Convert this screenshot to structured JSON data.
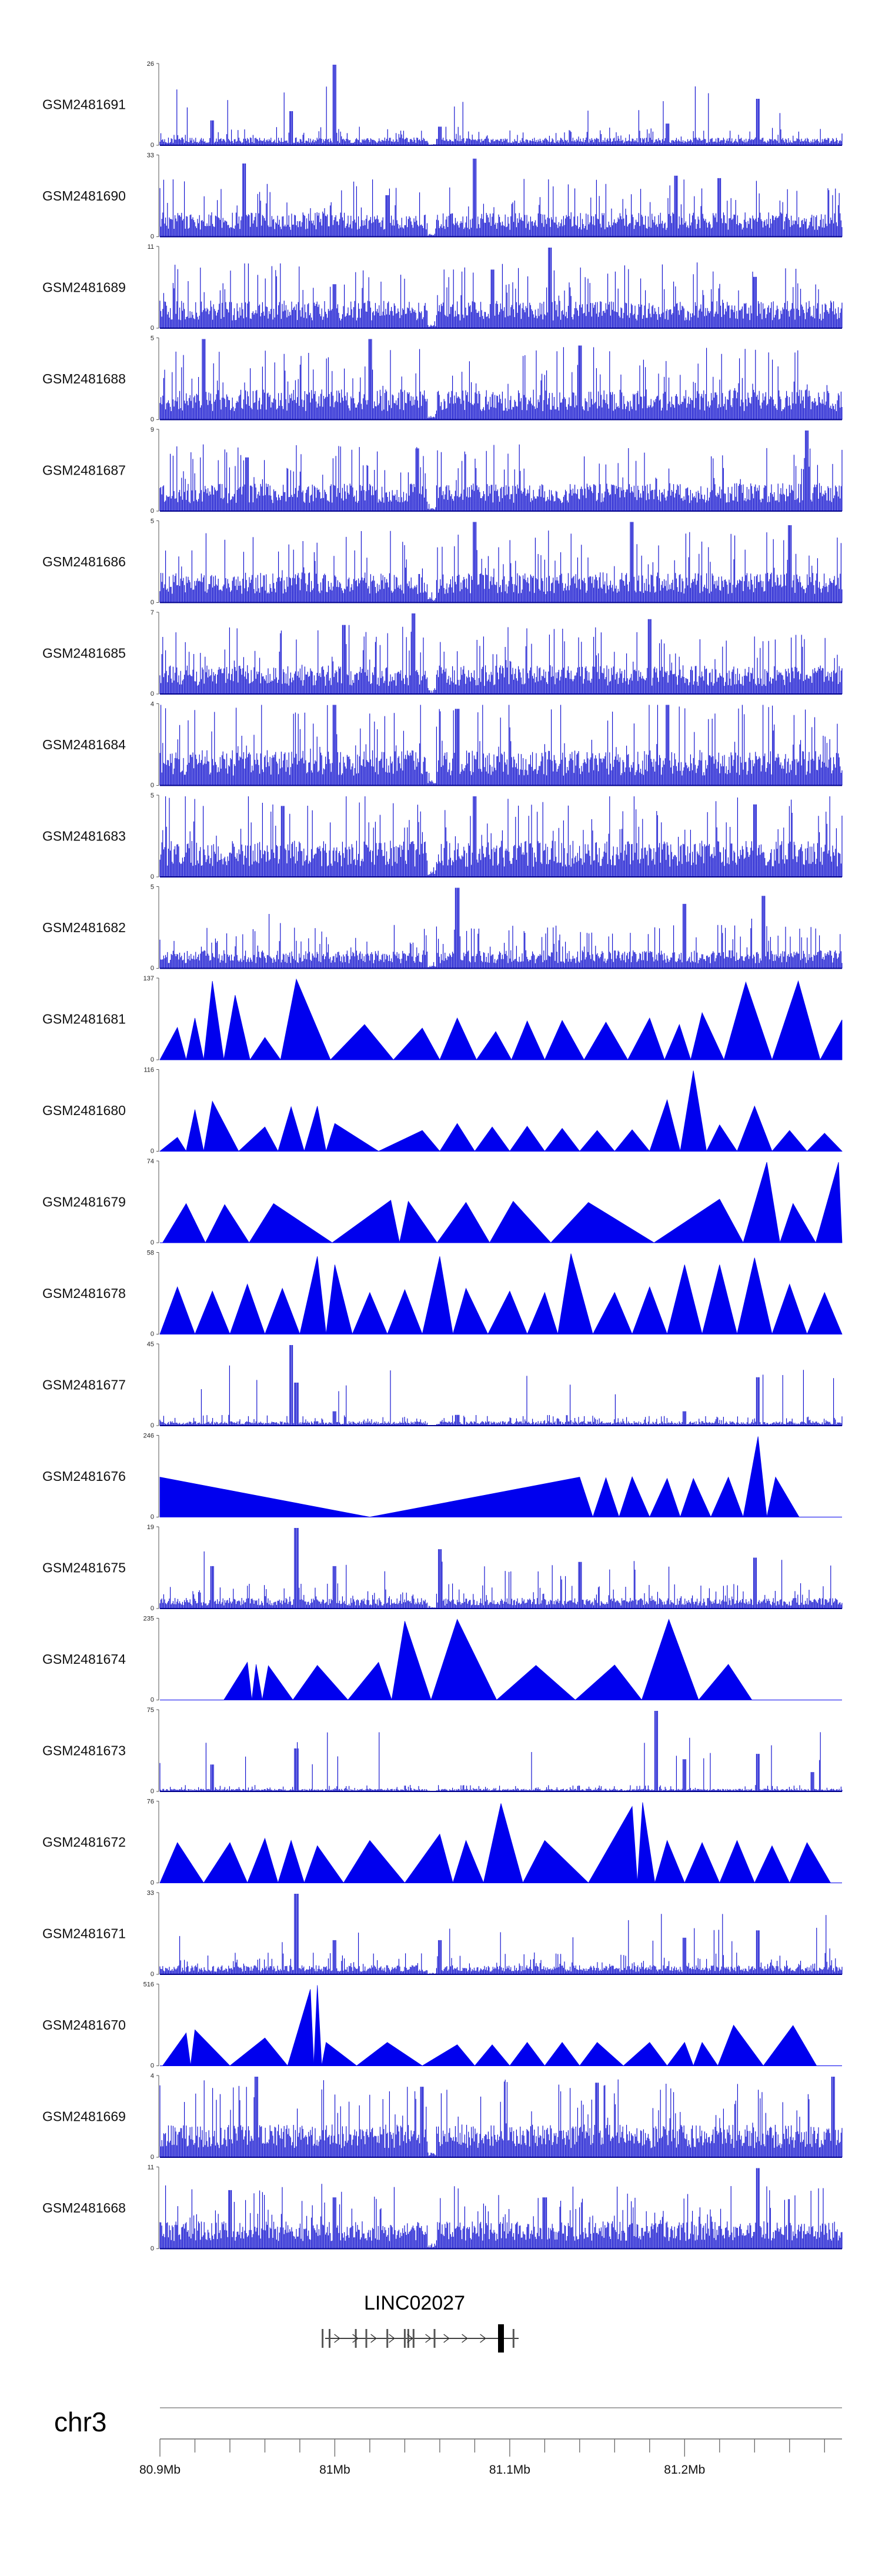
{
  "chart_data": {
    "type": "area",
    "chromosome": "chr3",
    "x_tick_labels": [
      "80.9Mb",
      "81Mb",
      "81.1Mb",
      "81.2Mb"
    ],
    "x_tick_values": [
      80.9,
      81.0,
      81.1,
      81.2
    ],
    "xlim": [
      80.9,
      81.29
    ],
    "gene": {
      "name": "LINC02027",
      "start": 80.993,
      "end": 81.102,
      "exons": [
        80.993,
        80.997,
        81.012,
        81.018,
        81.03,
        81.04,
        81.042,
        81.045,
        81.057,
        81.095
      ]
    },
    "series": [
      {
        "name": "GSM2481691",
        "ylim": [
          0,
          26
        ],
        "style": "signal",
        "peaks": [
          [
            81.0,
            26
          ],
          [
            80.975,
            11
          ],
          [
            81.06,
            6
          ],
          [
            81.19,
            7
          ],
          [
            81.242,
            15
          ],
          [
            80.93,
            8
          ]
        ],
        "base": 2
      },
      {
        "name": "GSM2481690",
        "ylim": [
          0,
          33
        ],
        "style": "signal",
        "peaks": [
          [
            80.948,
            30
          ],
          [
            81.08,
            32
          ],
          [
            81.03,
            17
          ],
          [
            81.195,
            25
          ],
          [
            81.22,
            24
          ]
        ],
        "base": 8
      },
      {
        "name": "GSM2481689",
        "ylim": [
          0,
          11
        ],
        "style": "signal",
        "peaks": [
          [
            81.123,
            11
          ],
          [
            81.09,
            8
          ],
          [
            81.0,
            6
          ],
          [
            81.24,
            7
          ]
        ],
        "base": 3
      },
      {
        "name": "GSM2481688",
        "ylim": [
          0,
          5
        ],
        "style": "signal",
        "peaks": [
          [
            80.925,
            5
          ],
          [
            81.02,
            5
          ],
          [
            81.14,
            4.6
          ]
        ],
        "base": 1.5
      },
      {
        "name": "GSM2481687",
        "ylim": [
          0,
          9
        ],
        "style": "signal",
        "peaks": [
          [
            81.27,
            9
          ],
          [
            81.047,
            7
          ],
          [
            80.95,
            6
          ]
        ],
        "base": 2.5
      },
      {
        "name": "GSM2481686",
        "ylim": [
          0,
          5
        ],
        "style": "signal",
        "peaks": [
          [
            81.08,
            5
          ],
          [
            81.17,
            5
          ],
          [
            81.26,
            4.8
          ]
        ],
        "base": 1.5
      },
      {
        "name": "GSM2481685",
        "ylim": [
          0,
          7
        ],
        "style": "signal",
        "peaks": [
          [
            81.045,
            7
          ],
          [
            81.005,
            6
          ],
          [
            81.18,
            6.5
          ]
        ],
        "base": 2
      },
      {
        "name": "GSM2481684",
        "ylim": [
          0,
          4
        ],
        "style": "signal",
        "peaks": [
          [
            81.0,
            4
          ],
          [
            81.07,
            3.8
          ],
          [
            81.19,
            4
          ]
        ],
        "base": 1.4
      },
      {
        "name": "GSM2481683",
        "ylim": [
          0,
          5
        ],
        "style": "signal",
        "peaks": [
          [
            81.08,
            5
          ],
          [
            81.24,
            4.5
          ],
          [
            80.97,
            4.4
          ]
        ],
        "base": 1.8
      },
      {
        "name": "GSM2481682",
        "ylim": [
          0,
          5
        ],
        "style": "signal",
        "peaks": [
          [
            81.07,
            5
          ],
          [
            81.245,
            4.5
          ],
          [
            81.2,
            4
          ]
        ],
        "base": 0.9
      },
      {
        "name": "GSM2481681",
        "ylim": [
          0,
          137
        ],
        "style": "spikes",
        "spikes": [
          [
            80.91,
            55
          ],
          [
            80.92,
            71
          ],
          [
            80.93,
            134
          ],
          [
            80.943,
            110
          ],
          [
            80.96,
            38
          ],
          [
            80.978,
            137
          ],
          [
            81.017,
            60
          ],
          [
            81.05,
            54
          ],
          [
            81.07,
            71
          ],
          [
            81.092,
            48
          ],
          [
            81.11,
            66
          ],
          [
            81.13,
            67
          ],
          [
            81.155,
            64
          ],
          [
            81.18,
            71
          ],
          [
            81.197,
            60
          ],
          [
            81.21,
            80
          ],
          [
            81.235,
            132
          ],
          [
            81.265,
            134
          ],
          [
            81.29,
            68
          ]
        ]
      },
      {
        "name": "GSM2481680",
        "ylim": [
          0,
          116
        ],
        "style": "spikes",
        "spikes": [
          [
            80.91,
            20
          ],
          [
            80.92,
            60
          ],
          [
            80.93,
            72
          ],
          [
            80.96,
            35
          ],
          [
            80.975,
            64
          ],
          [
            80.99,
            65
          ],
          [
            81.0,
            40
          ],
          [
            81.05,
            30
          ],
          [
            81.07,
            40
          ],
          [
            81.09,
            35
          ],
          [
            81.11,
            36
          ],
          [
            81.13,
            33
          ],
          [
            81.15,
            30
          ],
          [
            81.17,
            31
          ],
          [
            81.19,
            74
          ],
          [
            81.205,
            116
          ],
          [
            81.22,
            38
          ],
          [
            81.24,
            65
          ],
          [
            81.26,
            30
          ],
          [
            81.28,
            26
          ]
        ]
      },
      {
        "name": "GSM2481679",
        "ylim": [
          0,
          74
        ],
        "style": "spikes",
        "spikes": [
          [
            80.915,
            36
          ],
          [
            80.937,
            35
          ],
          [
            80.965,
            36
          ],
          [
            81.032,
            39
          ],
          [
            81.042,
            38
          ],
          [
            81.075,
            37
          ],
          [
            81.102,
            38
          ],
          [
            81.145,
            37
          ],
          [
            81.22,
            40
          ],
          [
            81.247,
            74
          ],
          [
            81.262,
            36
          ],
          [
            81.288,
            74
          ]
        ]
      },
      {
        "name": "GSM2481678",
        "ylim": [
          0,
          58
        ],
        "style": "spikes",
        "spikes": [
          [
            80.91,
            34
          ],
          [
            80.93,
            31
          ],
          [
            80.95,
            36
          ],
          [
            80.97,
            33
          ],
          [
            80.99,
            56
          ],
          [
            81.0,
            50
          ],
          [
            81.02,
            30
          ],
          [
            81.04,
            32
          ],
          [
            81.06,
            56
          ],
          [
            81.075,
            33
          ],
          [
            81.1,
            31
          ],
          [
            81.12,
            30
          ],
          [
            81.135,
            58
          ],
          [
            81.16,
            30
          ],
          [
            81.18,
            34
          ],
          [
            81.2,
            50
          ],
          [
            81.22,
            50
          ],
          [
            81.24,
            55
          ],
          [
            81.26,
            36
          ],
          [
            81.28,
            30
          ]
        ]
      },
      {
        "name": "GSM2481677",
        "ylim": [
          0,
          45
        ],
        "style": "signal",
        "peaks": [
          [
            80.975,
            45
          ],
          [
            80.978,
            24
          ],
          [
            81.0,
            8
          ],
          [
            81.07,
            6
          ],
          [
            81.2,
            8
          ],
          [
            81.242,
            27
          ]
        ],
        "base": 2
      },
      {
        "name": "GSM2481676",
        "ylim": [
          0,
          246
        ],
        "style": "spikes",
        "spikes": [
          [
            80.9,
            122
          ],
          [
            81.14,
            122
          ],
          [
            81.155,
            120
          ],
          [
            81.17,
            123
          ],
          [
            81.19,
            118
          ],
          [
            81.205,
            118
          ],
          [
            81.225,
            122
          ],
          [
            81.242,
            246
          ],
          [
            81.252,
            122
          ]
        ]
      },
      {
        "name": "GSM2481675",
        "ylim": [
          0,
          19
        ],
        "style": "signal",
        "peaks": [
          [
            80.978,
            19
          ],
          [
            80.93,
            10
          ],
          [
            81.0,
            10
          ],
          [
            81.06,
            14
          ],
          [
            81.14,
            11
          ],
          [
            81.24,
            12
          ]
        ],
        "base": 2
      },
      {
        "name": "GSM2481674",
        "ylim": [
          0,
          235
        ],
        "style": "spikes",
        "spikes": [
          [
            80.95,
            110
          ],
          [
            80.955,
            104
          ],
          [
            80.962,
            100
          ],
          [
            80.99,
            101
          ],
          [
            81.025,
            110
          ],
          [
            81.04,
            230
          ],
          [
            81.07,
            235
          ],
          [
            81.115,
            101
          ],
          [
            81.16,
            102
          ],
          [
            81.191,
            235
          ],
          [
            81.225,
            104
          ]
        ]
      },
      {
        "name": "GSM2481673",
        "ylim": [
          0,
          75
        ],
        "style": "signal",
        "peaks": [
          [
            81.184,
            75
          ],
          [
            81.2,
            30
          ],
          [
            80.93,
            25
          ],
          [
            80.978,
            40
          ],
          [
            81.242,
            35
          ],
          [
            81.273,
            18
          ]
        ],
        "base": 2
      },
      {
        "name": "GSM2481672",
        "ylim": [
          0,
          76
        ],
        "style": "spikes",
        "spikes": [
          [
            80.91,
            38
          ],
          [
            80.94,
            38
          ],
          [
            80.96,
            42
          ],
          [
            80.975,
            40
          ],
          [
            80.99,
            35
          ],
          [
            81.02,
            40
          ],
          [
            81.06,
            46
          ],
          [
            81.075,
            40
          ],
          [
            81.095,
            75
          ],
          [
            81.12,
            40
          ],
          [
            81.17,
            72
          ],
          [
            81.176,
            76
          ],
          [
            81.19,
            40
          ],
          [
            81.21,
            38
          ],
          [
            81.23,
            40
          ],
          [
            81.25,
            35
          ],
          [
            81.27,
            38
          ]
        ]
      },
      {
        "name": "GSM2481671",
        "ylim": [
          0,
          33
        ],
        "style": "signal",
        "peaks": [
          [
            80.978,
            33
          ],
          [
            81.0,
            14
          ],
          [
            81.06,
            14
          ],
          [
            81.2,
            15
          ],
          [
            81.242,
            18
          ]
        ],
        "base": 3
      },
      {
        "name": "GSM2481670",
        "ylim": [
          0,
          516
        ],
        "style": "spikes",
        "spikes": [
          [
            80.915,
            210
          ],
          [
            80.92,
            230
          ],
          [
            80.96,
            178
          ],
          [
            80.986,
            490
          ],
          [
            80.99,
            516
          ],
          [
            80.995,
            150
          ],
          [
            81.03,
            150
          ],
          [
            81.07,
            135
          ],
          [
            81.09,
            135
          ],
          [
            81.11,
            150
          ],
          [
            81.13,
            150
          ],
          [
            81.15,
            150
          ],
          [
            81.18,
            150
          ],
          [
            81.2,
            150
          ],
          [
            81.21,
            150
          ],
          [
            81.228,
            260
          ],
          [
            81.262,
            258
          ]
        ]
      },
      {
        "name": "GSM2481669",
        "ylim": [
          0,
          4
        ],
        "style": "signal",
        "peaks": [
          [
            80.955,
            4
          ],
          [
            81.285,
            4
          ],
          [
            81.05,
            3.5
          ],
          [
            81.15,
            3.7
          ]
        ],
        "base": 1.3
      },
      {
        "name": "GSM2481668",
        "ylim": [
          0,
          11
        ],
        "style": "signal",
        "peaks": [
          [
            81.242,
            11
          ],
          [
            81.0,
            7
          ],
          [
            80.94,
            8
          ],
          [
            81.12,
            7
          ]
        ],
        "base": 3
      }
    ]
  }
}
